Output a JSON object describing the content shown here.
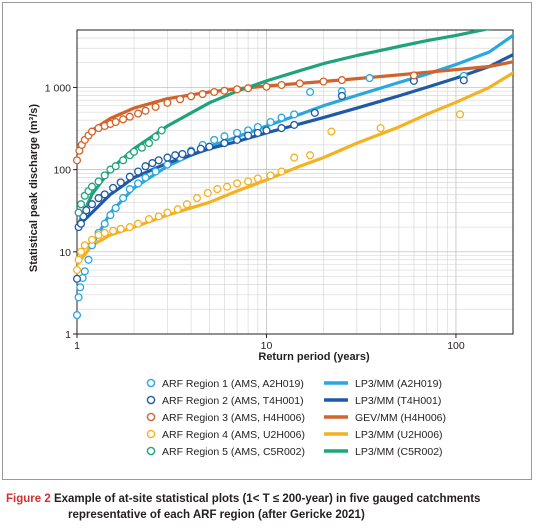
{
  "caption": {
    "label": "Figure 2",
    "line1": "Example of at-site statistical plots (1< T ≤ 200-year) in five gauged catchments",
    "line2": "representative of each ARF region (after Gericke 2021)"
  },
  "chart_data": {
    "type": "scatter",
    "xlabel": "Return period (years)",
    "ylabel": "Statistical peak discharge (m³/s)",
    "x_scale": "log",
    "y_scale": "log",
    "xlim": [
      1,
      200
    ],
    "ylim": [
      1,
      5000
    ],
    "x_ticks": [
      {
        "value": 1,
        "label": "1"
      },
      {
        "value": 10,
        "label": "10"
      },
      {
        "value": 100,
        "label": "100"
      }
    ],
    "y_ticks": [
      {
        "value": 1,
        "label": "1"
      },
      {
        "value": 10,
        "label": "10"
      },
      {
        "value": 100,
        "label": "100"
      },
      {
        "value": 1000,
        "label": "1 000"
      }
    ],
    "grid": true,
    "legend_position": "bottom",
    "series": [
      {
        "name": "ARF Region 1 (AMS, A2H019)",
        "kind": "points",
        "color": "#2aa7df",
        "x": [
          1.0,
          1.02,
          1.04,
          1.07,
          1.1,
          1.15,
          1.2,
          1.3,
          1.4,
          1.5,
          1.6,
          1.75,
          1.9,
          2.1,
          2.3,
          2.6,
          3.0,
          3.5,
          4.0,
          4.6,
          5.3,
          6.0,
          7.0,
          8.0,
          9.0,
          10.5,
          12.0,
          14.0,
          17.0,
          25.0,
          35.0,
          110.0
        ],
        "y": [
          1.7,
          2.8,
          3.7,
          4.8,
          5.8,
          8.0,
          12,
          17,
          22,
          28,
          34,
          45,
          58,
          68,
          80,
          95,
          115,
          140,
          170,
          200,
          230,
          255,
          280,
          300,
          330,
          380,
          430,
          470,
          880,
          900,
          1300,
          1380
        ]
      },
      {
        "name": "ARF Region 2 (AMS, T4H001)",
        "kind": "points",
        "color": "#1f5aa6",
        "x": [
          1.0,
          1.02,
          1.05,
          1.08,
          1.12,
          1.2,
          1.3,
          1.4,
          1.55,
          1.7,
          1.9,
          2.1,
          2.3,
          2.5,
          2.7,
          3.0,
          3.3,
          3.6,
          4.0,
          4.5,
          5.0,
          6.0,
          7.0,
          8.0,
          9.0,
          10.0,
          12.0,
          14.0,
          18.0,
          25.0,
          60.0,
          110.0
        ],
        "y": [
          4.7,
          20,
          22,
          27,
          32,
          38,
          45,
          50,
          60,
          70,
          82,
          95,
          110,
          120,
          130,
          140,
          150,
          155,
          165,
          180,
          190,
          210,
          230,
          260,
          280,
          300,
          320,
          350,
          490,
          790,
          1200,
          1220
        ]
      },
      {
        "name": "ARF Region 3 (AMS, H4H006)",
        "kind": "points",
        "color": "#d2632a",
        "x": [
          1.0,
          1.03,
          1.06,
          1.1,
          1.15,
          1.2,
          1.3,
          1.4,
          1.5,
          1.6,
          1.75,
          1.9,
          2.1,
          2.3,
          2.6,
          3.0,
          3.5,
          4.0,
          4.6,
          5.3,
          6.0,
          7.0,
          8.0,
          10.0,
          12.0,
          15.0,
          20.0,
          25.0,
          60.0
        ],
        "y": [
          130,
          170,
          200,
          230,
          260,
          290,
          320,
          340,
          360,
          380,
          410,
          440,
          480,
          520,
          580,
          650,
          720,
          780,
          830,
          880,
          910,
          950,
          980,
          1020,
          1070,
          1120,
          1180,
          1230,
          1400
        ]
      },
      {
        "name": "ARF Region 4 (AMS, U2H006)",
        "kind": "points",
        "color": "#f4b223",
        "x": [
          1.0,
          1.02,
          1.05,
          1.1,
          1.2,
          1.3,
          1.4,
          1.55,
          1.7,
          1.9,
          2.1,
          2.4,
          2.7,
          3.0,
          3.4,
          3.8,
          4.3,
          4.9,
          5.5,
          6.2,
          7.0,
          8.0,
          9.0,
          10.5,
          12.0,
          14.0,
          17.0,
          22.0,
          40.0,
          105.0
        ],
        "y": [
          6,
          8,
          10,
          12,
          14,
          16,
          17,
          18,
          19,
          20,
          22,
          25,
          27,
          30,
          33,
          38,
          45,
          52,
          58,
          62,
          68,
          72,
          78,
          85,
          95,
          140,
          150,
          290,
          320,
          470
        ]
      },
      {
        "name": "ARF Region 5 (AMS, C5R002)",
        "kind": "points",
        "color": "#1fa37a",
        "x": [
          1.02,
          1.05,
          1.1,
          1.15,
          1.2,
          1.3,
          1.4,
          1.5,
          1.6,
          1.75,
          1.9,
          2.0,
          2.2,
          2.4,
          2.6,
          2.8
        ],
        "y": [
          30,
          38,
          48,
          55,
          62,
          72,
          85,
          100,
          110,
          130,
          150,
          165,
          185,
          210,
          250,
          300
        ]
      },
      {
        "name": "LP3/MM (A2H019)",
        "kind": "line",
        "color": "#2aa7df",
        "x": [
          1.2,
          1.5,
          2,
          3,
          5,
          7,
          10,
          15,
          20,
          30,
          50,
          70,
          100,
          150,
          200
        ],
        "y": [
          12,
          30,
          60,
          110,
          190,
          250,
          340,
          470,
          600,
          800,
          1150,
          1450,
          1900,
          2700,
          4300
        ]
      },
      {
        "name": "LP3/MM (T4H001)",
        "kind": "line",
        "color": "#1f5aa6",
        "x": [
          1.0,
          1.2,
          1.5,
          2,
          3,
          5,
          7,
          10,
          15,
          20,
          30,
          50,
          70,
          100,
          150,
          200
        ],
        "y": [
          20,
          30,
          50,
          80,
          120,
          180,
          220,
          280,
          360,
          430,
          560,
          790,
          1000,
          1300,
          1800,
          2500
        ]
      },
      {
        "name": "GEV/MM (H4H006)",
        "kind": "line",
        "color": "#d2632a",
        "x": [
          1.2,
          1.5,
          2,
          3,
          5,
          7,
          10,
          15,
          20,
          30,
          50,
          70,
          100,
          150,
          200
        ],
        "y": [
          300,
          420,
          560,
          730,
          880,
          960,
          1040,
          1120,
          1180,
          1280,
          1420,
          1530,
          1650,
          1800,
          2050
        ]
      },
      {
        "name": "LP3/MM (U2H006)",
        "kind": "line",
        "color": "#f4b223",
        "x": [
          1.0,
          1.2,
          1.5,
          2,
          3,
          5,
          7,
          10,
          15,
          20,
          30,
          50,
          70,
          100,
          150,
          200
        ],
        "y": [
          7,
          12,
          16,
          20,
          28,
          40,
          55,
          75,
          110,
          140,
          210,
          330,
          470,
          660,
          1000,
          1500
        ]
      },
      {
        "name": "LP3/MM (C5R002)",
        "kind": "line",
        "color": "#1fa37a",
        "x": [
          1.0,
          1.2,
          1.5,
          2,
          3,
          5,
          7,
          10,
          15,
          20,
          30,
          50,
          70,
          100,
          150,
          200
        ],
        "y": [
          20,
          50,
          100,
          180,
          340,
          650,
          900,
          1200,
          1600,
          1950,
          2450,
          3150,
          3700,
          4300,
          5200,
          5800
        ]
      }
    ]
  }
}
